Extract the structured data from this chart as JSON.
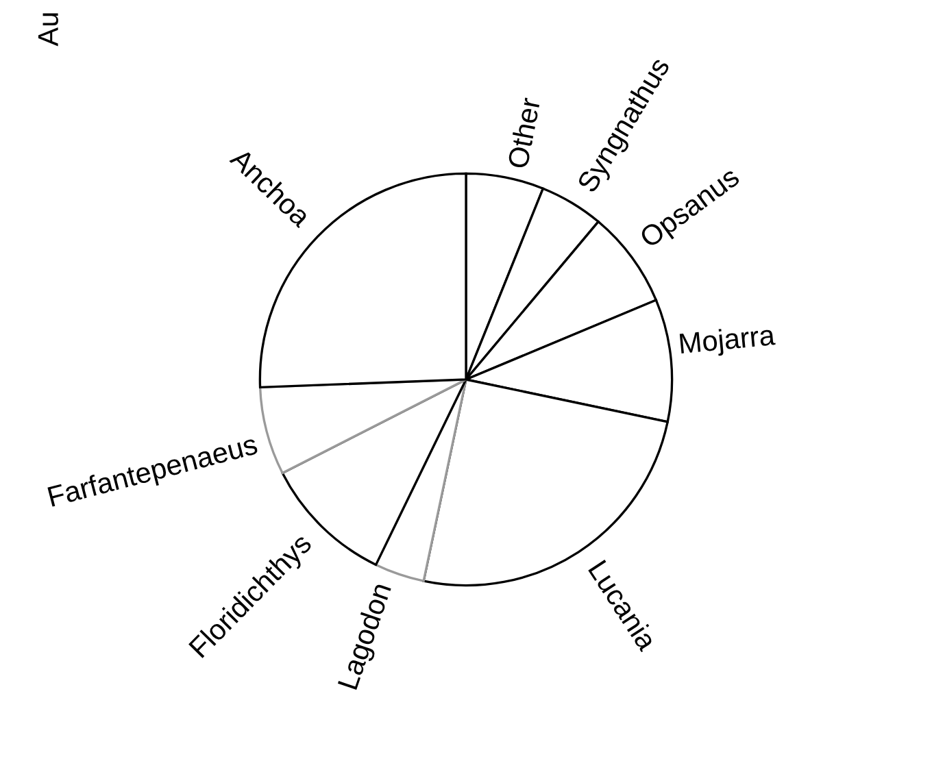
{
  "chart_data": {
    "type": "pie",
    "title": "Au",
    "categories": [
      "Other",
      "Syngnathus",
      "Opsanus",
      "Mojarra",
      "Lucania",
      "Lagodon",
      "Floridichthys",
      "Farfantepenaeus",
      "Anchoa"
    ],
    "values": [
      6.1,
      5.0,
      7.6,
      9.6,
      25.0,
      3.9,
      10.3,
      6.9,
      25.6
    ],
    "colors": [
      "#000000",
      "#000000",
      "#000000",
      "#000000",
      "#000000",
      "#9a9a9a",
      "#000000",
      "#9a9a9a",
      "#000000"
    ]
  }
}
